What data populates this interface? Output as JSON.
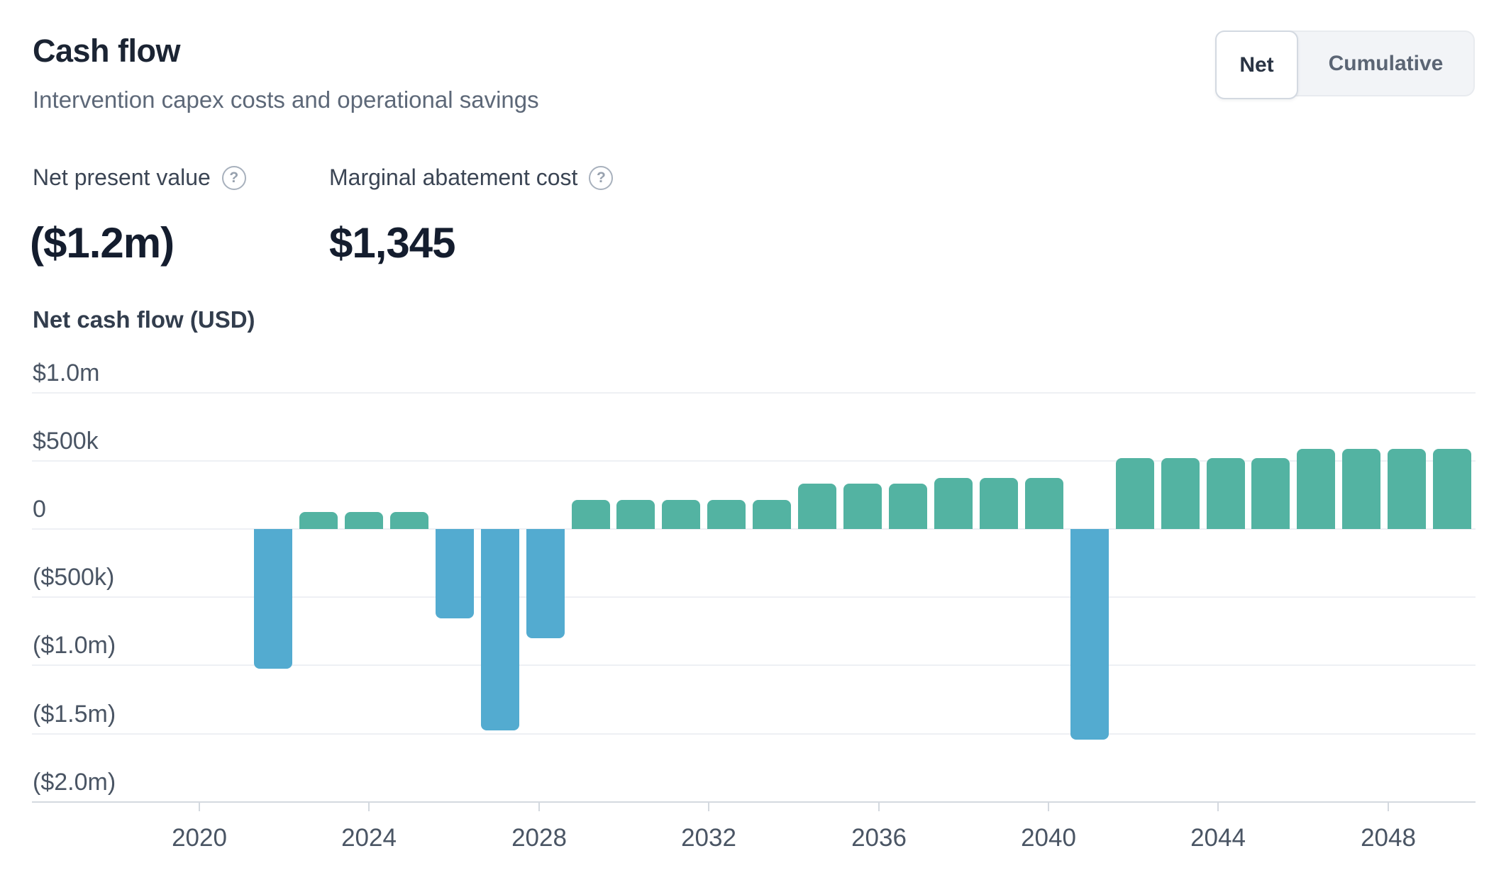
{
  "header": {
    "title": "Cash flow",
    "subtitle": "Intervention capex costs and operational savings",
    "metrics": [
      {
        "label": "Net present value",
        "value": "($1.2m)"
      },
      {
        "label": "Marginal abatement cost",
        "value": "$1,345"
      }
    ],
    "toggle": {
      "options": [
        "Net",
        "Cumulative"
      ],
      "selected": "Net"
    }
  },
  "icons": {
    "help": "?"
  },
  "chart_data": {
    "type": "bar",
    "title": "Net cash flow (USD)",
    "unit": "USD (thousands)",
    "positive_color": "#53b3a2",
    "negative_color": "#53abd0",
    "gridline_color": "#eef0f4",
    "axis_color": "#d4d9df",
    "ylim_k": [
      -2000,
      1000
    ],
    "y_ticks": [
      {
        "label": "$1.0m",
        "value_k": 1000
      },
      {
        "label": "$500k",
        "value_k": 500
      },
      {
        "label": "0",
        "value_k": 0
      },
      {
        "label": "($500k)",
        "value_k": -500
      },
      {
        "label": "($1.0m)",
        "value_k": -1000
      },
      {
        "label": "($1.5m)",
        "value_k": -1500
      },
      {
        "label": "($2.0m)",
        "value_k": -2000
      }
    ],
    "x_ticks": [
      2020,
      2024,
      2028,
      2032,
      2036,
      2040,
      2044,
      2048
    ],
    "bars": [
      {
        "year": 2022,
        "value_k": -1025
      },
      {
        "year": 2023,
        "value_k": 125
      },
      {
        "year": 2024,
        "value_k": 125
      },
      {
        "year": 2025,
        "value_k": 125
      },
      {
        "year": 2026,
        "value_k": -655
      },
      {
        "year": 2027,
        "value_k": -1475
      },
      {
        "year": 2028,
        "value_k": -800
      },
      {
        "year": 2029,
        "value_k": 215
      },
      {
        "year": 2030,
        "value_k": 215
      },
      {
        "year": 2031,
        "value_k": 215
      },
      {
        "year": 2032,
        "value_k": 215
      },
      {
        "year": 2033,
        "value_k": 215
      },
      {
        "year": 2034,
        "value_k": 335
      },
      {
        "year": 2035,
        "value_k": 335
      },
      {
        "year": 2036,
        "value_k": 335
      },
      {
        "year": 2037,
        "value_k": 372
      },
      {
        "year": 2038,
        "value_k": 372
      },
      {
        "year": 2039,
        "value_k": 372
      },
      {
        "year": 2040,
        "value_k": -1545
      },
      {
        "year": 2041,
        "value_k": 520
      },
      {
        "year": 2042,
        "value_k": 520
      },
      {
        "year": 2043,
        "value_k": 520
      },
      {
        "year": 2044,
        "value_k": 520
      },
      {
        "year": 2045,
        "value_k": 587
      },
      {
        "year": 2046,
        "value_k": 587
      },
      {
        "year": 2047,
        "value_k": 587
      },
      {
        "year": 2048,
        "value_k": 587
      }
    ]
  }
}
